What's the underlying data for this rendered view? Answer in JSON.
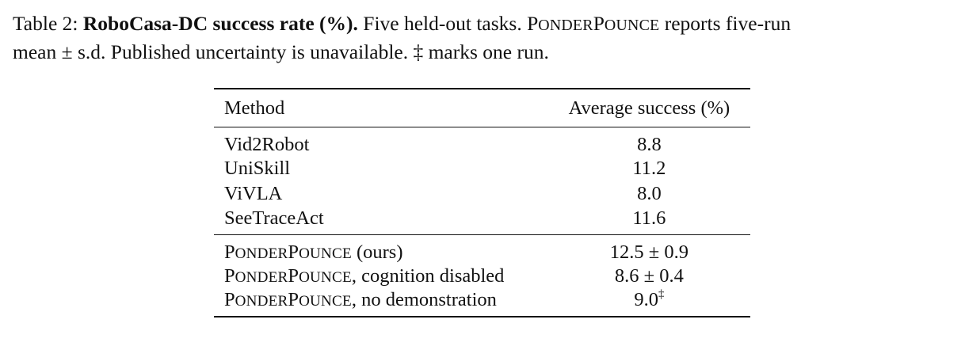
{
  "caption": {
    "label": "Table 2:",
    "title": "RoboCasa-DC success rate (%).",
    "line1_a": "Five held-out tasks.",
    "method_P": "P",
    "method_onder": "ONDER",
    "method_P2": "P",
    "method_ounce": "OUNCE",
    "line1_b": "reports five-run",
    "line2": "mean ± s.d. Published uncertainty is unavailable. ‡ marks one run."
  },
  "table": {
    "headers": [
      "Method",
      "Average success (%)"
    ],
    "baselines": [
      {
        "method": "Vid2Robot",
        "value": "8.8"
      },
      {
        "method": "UniSkill",
        "value": "11.2"
      },
      {
        "method": "ViVLA",
        "value": "8.0"
      },
      {
        "method": "SeeTraceAct",
        "value": "11.6"
      }
    ],
    "ours": [
      {
        "suffix": " (ours)",
        "value": "12.5 ± 0.9",
        "sup": ""
      },
      {
        "suffix": ", cognition disabled",
        "value": "8.6 ± 0.4",
        "sup": ""
      },
      {
        "suffix": ", no demonstration",
        "value": "9.0",
        "sup": "‡"
      }
    ]
  }
}
